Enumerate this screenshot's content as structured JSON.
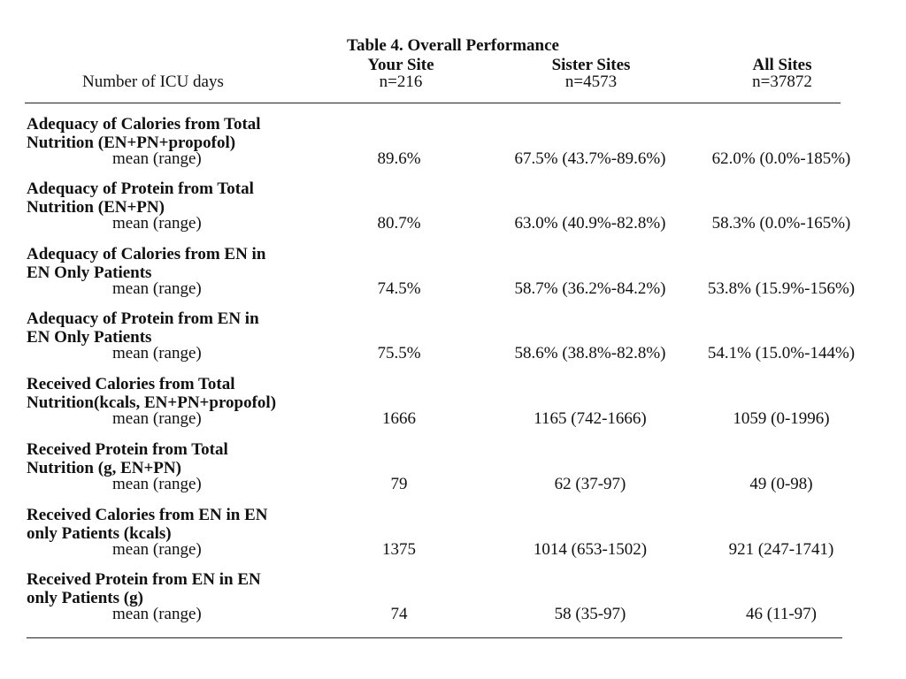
{
  "table": {
    "title": "Table 4. Overall Performance",
    "row_header": "Number of ICU days",
    "columns": [
      {
        "name": "Your Site",
        "n": "n=216"
      },
      {
        "name": "Sister Sites",
        "n": "n=4573"
      },
      {
        "name": "All Sites",
        "n": "n=37872"
      }
    ],
    "rows": [
      {
        "label_line1": "Adequacy of Calories from Total",
        "label_line2": "Nutrition (EN+PN+propofol)",
        "sub": "mean (range)",
        "values": [
          "89.6%",
          "67.5%  (43.7%-89.6%)",
          "62.0%  (0.0%-185%)"
        ]
      },
      {
        "label_line1": "Adequacy of Protein  from Total",
        "label_line2": "Nutrition (EN+PN)",
        "sub": "mean (range)",
        "values": [
          "80.7%",
          "63.0%  (40.9%-82.8%)",
          "58.3%  (0.0%-165%)"
        ]
      },
      {
        "label_line1": "Adequacy of Calories from EN in",
        "label_line2": "EN Only Patients",
        "sub": "mean (range)",
        "values": [
          "74.5%",
          "58.7%  (36.2%-84.2%)",
          "53.8%  (15.9%-156%)"
        ]
      },
      {
        "label_line1": "Adequacy of Protein from EN in",
        "label_line2": "EN Only Patients",
        "sub": "mean (range)",
        "values": [
          "75.5%",
          "58.6%  (38.8%-82.8%)",
          "54.1%  (15.0%-144%)"
        ]
      },
      {
        "label_line1": "Received Calories from Total",
        "label_line2": "Nutrition(kcals, EN+PN+propofol)",
        "sub": "mean (range)",
        "values": [
          "1666",
          "1165 (742-1666)",
          "1059 (0-1996)"
        ]
      },
      {
        "label_line1": "Received Protein from Total",
        "label_line2": "Nutrition (g, EN+PN)",
        "sub": "mean (range)",
        "values": [
          "79",
          "62 (37-97)",
          "49 (0-98)"
        ]
      },
      {
        "label_line1": "Received Calories from EN in EN",
        "label_line2": "only Patients (kcals)",
        "sub": "mean (range)",
        "values": [
          "1375",
          "1014 (653-1502)",
          "921 (247-1741)"
        ]
      },
      {
        "label_line1": "Received Protein from EN in EN",
        "label_line2": "only Patients (g)",
        "sub": "mean (range)",
        "values": [
          "74",
          "58 (35-97)",
          "46 (11-97)"
        ]
      }
    ]
  }
}
